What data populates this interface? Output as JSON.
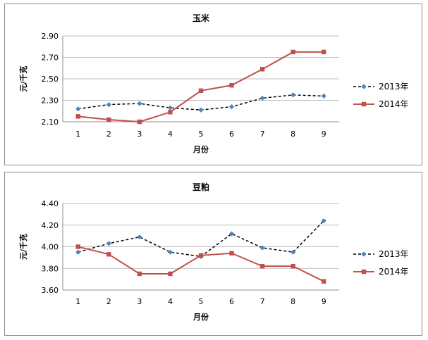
{
  "chart_data": [
    {
      "type": "line",
      "title": "玉米",
      "xlabel": "月份",
      "ylabel": "元/千克",
      "categories": [
        "1",
        "2",
        "3",
        "4",
        "5",
        "6",
        "7",
        "8",
        "9"
      ],
      "ylim": [
        2.1,
        2.9
      ],
      "yticks": [
        "2.10",
        "2.30",
        "2.50",
        "2.70",
        "2.90"
      ],
      "grid": true,
      "legend_position": "right",
      "series": [
        {
          "name": "2013年",
          "values": [
            2.22,
            2.26,
            2.27,
            2.23,
            2.21,
            2.24,
            2.32,
            2.35,
            2.34
          ],
          "color": "#4f81bd",
          "line_color": "#000000",
          "dashed": true,
          "marker": "diamond"
        },
        {
          "name": "2014年",
          "values": [
            2.15,
            2.12,
            2.1,
            2.19,
            2.39,
            2.44,
            2.59,
            2.75,
            2.75
          ],
          "color": "#c0504d",
          "line_color": "#c0504d",
          "dashed": false,
          "marker": "square"
        }
      ]
    },
    {
      "type": "line",
      "title": "豆粕",
      "xlabel": "月份",
      "ylabel": "元/千克",
      "categories": [
        "1",
        "2",
        "3",
        "4",
        "5",
        "6",
        "7",
        "8",
        "9"
      ],
      "ylim": [
        3.6,
        4.4
      ],
      "yticks": [
        "3.60",
        "3.80",
        "4.00",
        "4.20",
        "4.40"
      ],
      "grid": true,
      "legend_position": "right",
      "series": [
        {
          "name": "2013年",
          "values": [
            3.95,
            4.03,
            4.09,
            3.95,
            3.91,
            4.12,
            3.99,
            3.95,
            4.24
          ],
          "color": "#4f81bd",
          "line_color": "#000000",
          "dashed": true,
          "marker": "diamond"
        },
        {
          "name": "2014年",
          "values": [
            4.0,
            3.93,
            3.75,
            3.75,
            3.92,
            3.94,
            3.82,
            3.82,
            3.68
          ],
          "color": "#c0504d",
          "line_color": "#c0504d",
          "dashed": false,
          "marker": "square"
        }
      ]
    }
  ]
}
